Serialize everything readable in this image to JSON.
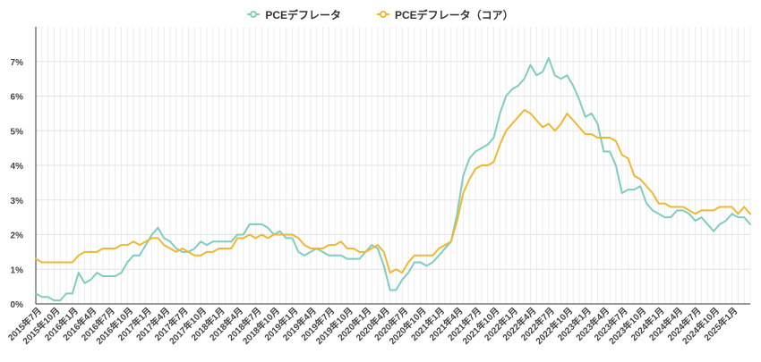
{
  "chart_data": {
    "type": "line",
    "title": "",
    "xlabel": "",
    "ylabel": "",
    "ylim": [
      0,
      8
    ],
    "y_ticks": [
      "0%",
      "1%",
      "2%",
      "3%",
      "4%",
      "5%",
      "6%",
      "7%"
    ],
    "y_tick_values": [
      0,
      1,
      2,
      3,
      4,
      5,
      6,
      7
    ],
    "x_tick_labels": [
      "2015年7月",
      "2015年10月",
      "2016年1月",
      "2016年4月",
      "2016年7月",
      "2016年10月",
      "2017年1月",
      "2017年4月",
      "2017年7月",
      "2017年10月",
      "2018年1月",
      "2018年4月",
      "2018年7月",
      "2018年10月",
      "2019年1月",
      "2019年4月",
      "2019年7月",
      "2019年10月",
      "2020年1月",
      "2020年4月",
      "2020年7月",
      "2020年10月",
      "2021年1月",
      "2021年4月",
      "2021年7月",
      "2021年10月",
      "2022年1月",
      "2022年4月",
      "2022年7月",
      "2022年10月",
      "2023年1月",
      "2023年4月",
      "2023年7月",
      "2023年10月",
      "2024年1月",
      "2024年4月",
      "2024年7月",
      "2024年10月",
      "2025年1月"
    ],
    "x_start": "2015年6月",
    "x_end": "2025年3月",
    "legend_position": "top-center",
    "series": [
      {
        "name": "PCEデフレータ",
        "color": "#7ecdc0",
        "values": [
          0.3,
          0.2,
          0.2,
          0.1,
          0.1,
          0.3,
          0.3,
          0.9,
          0.6,
          0.7,
          0.9,
          0.8,
          0.8,
          0.8,
          0.9,
          1.2,
          1.4,
          1.4,
          1.7,
          2.0,
          2.2,
          1.9,
          1.8,
          1.6,
          1.5,
          1.5,
          1.6,
          1.8,
          1.7,
          1.8,
          1.8,
          1.8,
          1.8,
          2.0,
          2.0,
          2.3,
          2.3,
          2.3,
          2.2,
          2.0,
          2.1,
          1.9,
          1.9,
          1.5,
          1.4,
          1.5,
          1.6,
          1.5,
          1.4,
          1.4,
          1.4,
          1.3,
          1.3,
          1.3,
          1.5,
          1.7,
          1.6,
          1.1,
          0.4,
          0.4,
          0.7,
          0.9,
          1.2,
          1.2,
          1.1,
          1.2,
          1.4,
          1.6,
          1.8,
          2.6,
          3.7,
          4.2,
          4.4,
          4.5,
          4.6,
          4.8,
          5.5,
          6.0,
          6.2,
          6.3,
          6.5,
          6.9,
          6.6,
          6.7,
          7.1,
          6.6,
          6.5,
          6.6,
          6.3,
          5.9,
          5.4,
          5.5,
          5.2,
          4.4,
          4.4,
          4.0,
          3.2,
          3.3,
          3.3,
          3.4,
          2.9,
          2.7,
          2.6,
          2.5,
          2.5,
          2.7,
          2.7,
          2.6,
          2.4,
          2.5,
          2.3,
          2.1,
          2.3,
          2.4,
          2.6,
          2.5,
          2.5,
          2.3
        ]
      },
      {
        "name": "PCEデフレータ（コア）",
        "color": "#f0b733",
        "values": [
          1.3,
          1.2,
          1.2,
          1.2,
          1.2,
          1.2,
          1.2,
          1.4,
          1.5,
          1.5,
          1.5,
          1.6,
          1.6,
          1.6,
          1.7,
          1.7,
          1.8,
          1.7,
          1.8,
          1.9,
          1.9,
          1.7,
          1.6,
          1.5,
          1.6,
          1.5,
          1.4,
          1.4,
          1.5,
          1.5,
          1.6,
          1.6,
          1.6,
          1.9,
          1.9,
          2.0,
          1.9,
          2.0,
          1.9,
          2.0,
          2.0,
          2.0,
          2.0,
          1.9,
          1.7,
          1.6,
          1.6,
          1.6,
          1.7,
          1.7,
          1.8,
          1.6,
          1.6,
          1.5,
          1.5,
          1.6,
          1.7,
          1.5,
          0.9,
          1.0,
          0.9,
          1.2,
          1.4,
          1.4,
          1.4,
          1.4,
          1.6,
          1.7,
          1.8,
          2.4,
          3.2,
          3.6,
          3.9,
          4.0,
          4.0,
          4.1,
          4.6,
          5.0,
          5.2,
          5.4,
          5.6,
          5.5,
          5.3,
          5.1,
          5.2,
          5.0,
          5.2,
          5.5,
          5.3,
          5.1,
          4.9,
          4.9,
          4.8,
          4.8,
          4.8,
          4.7,
          4.3,
          4.2,
          3.7,
          3.6,
          3.4,
          3.2,
          2.9,
          2.9,
          2.8,
          2.8,
          2.8,
          2.7,
          2.6,
          2.7,
          2.7,
          2.7,
          2.8,
          2.8,
          2.8,
          2.6,
          2.8,
          2.6
        ]
      }
    ]
  }
}
